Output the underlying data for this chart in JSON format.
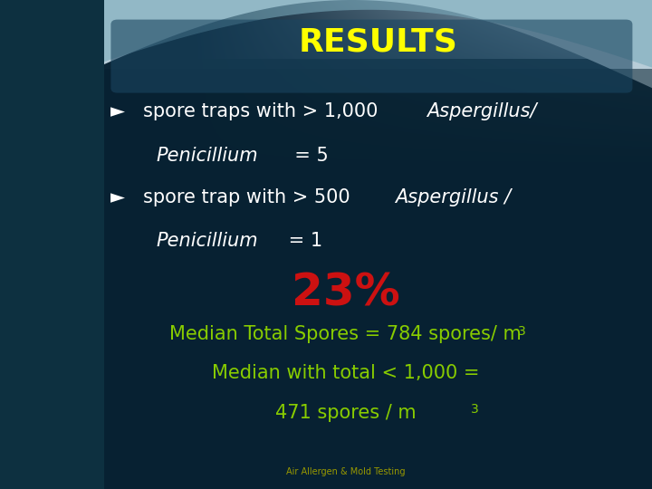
{
  "title": "RESULTS",
  "title_color": "#FFFF00",
  "title_fontsize": 26,
  "bg_color_top": "#c8d8e0",
  "bg_color_main": "#0a2535",
  "bullet_color": "#ffffff",
  "bullet_fontsize": 15,
  "arrow": "►",
  "percent_text": "23%",
  "percent_color": "#cc1111",
  "percent_fontsize": 36,
  "median_color": "#88cc00",
  "median_fontsize": 15,
  "footer_text": "Air Allergen & Mold Testing",
  "footer_color": "#999900",
  "footer_fontsize": 7
}
